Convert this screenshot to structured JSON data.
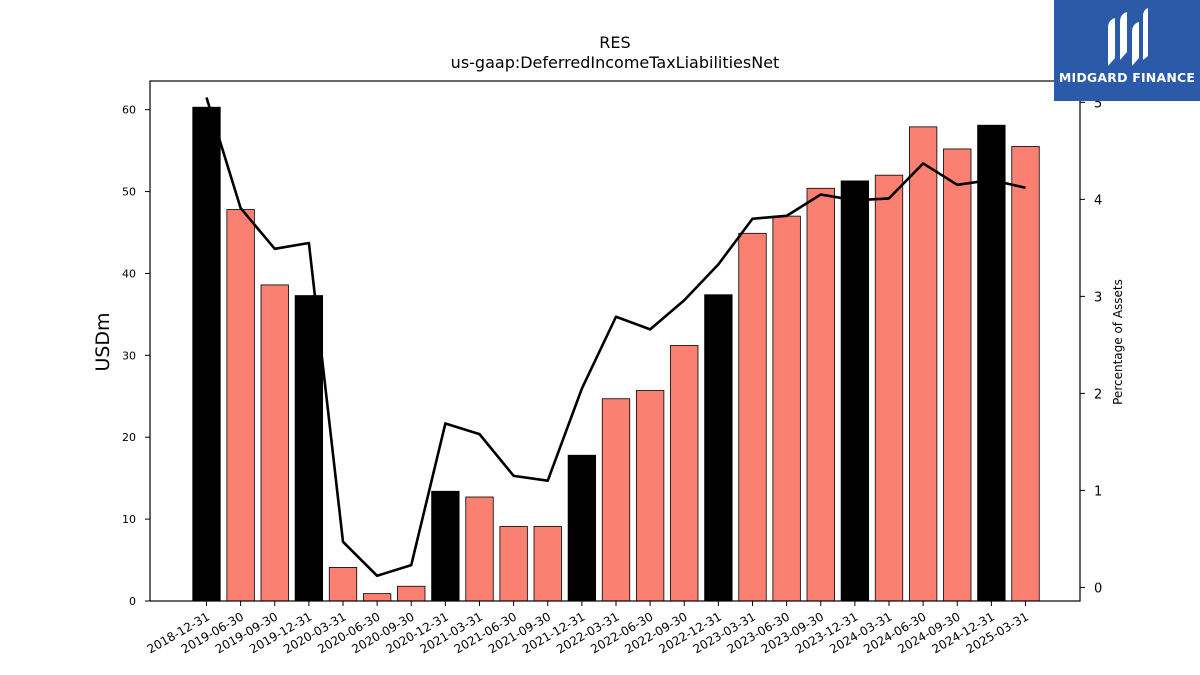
{
  "chart_data": {
    "type": "bar",
    "title": "RES",
    "subtitle": "us-gaap:DeferredIncomeTaxLiabilitiesNet",
    "ylabel": "USDm",
    "y2label": "Percentage of Assets",
    "ylim": [
      0,
      63.5
    ],
    "y2lim": [
      -0.14,
      5.22
    ],
    "yticks": [
      0,
      10,
      20,
      30,
      40,
      50,
      60
    ],
    "y2ticks": [
      0,
      1,
      2,
      3,
      4,
      5
    ],
    "grid": false,
    "categories": [
      "2018-12-31",
      "2019-06-30",
      "2019-09-30",
      "2019-12-31",
      "2020-03-31",
      "2020-06-30",
      "2020-09-30",
      "2020-12-31",
      "2021-03-31",
      "2021-06-30",
      "2021-09-30",
      "2021-12-31",
      "2022-03-31",
      "2022-06-30",
      "2022-09-30",
      "2022-12-31",
      "2023-03-31",
      "2023-06-30",
      "2023-09-30",
      "2023-12-31",
      "2024-03-31",
      "2024-06-30",
      "2024-09-30",
      "2024-12-31",
      "2025-03-31"
    ],
    "series": [
      {
        "type": "bar",
        "values": [
          60.3,
          47.8,
          38.6,
          37.3,
          4.1,
          0.9,
          1.8,
          13.4,
          12.7,
          9.1,
          9.1,
          17.8,
          24.7,
          25.7,
          31.2,
          37.4,
          44.9,
          47.0,
          50.4,
          51.3,
          52.0,
          57.9,
          55.2,
          58.1,
          55.5
        ],
        "highlight": [
          true,
          false,
          false,
          true,
          false,
          false,
          false,
          true,
          false,
          false,
          false,
          true,
          false,
          false,
          false,
          true,
          false,
          false,
          false,
          true,
          false,
          false,
          false,
          true,
          false
        ],
        "color": "#fa8072",
        "highlight_color": "#000000"
      },
      {
        "type": "line",
        "axis": "right",
        "values": [
          5.05,
          3.91,
          3.49,
          3.55,
          0.47,
          0.12,
          0.23,
          1.69,
          1.58,
          1.15,
          1.1,
          2.05,
          2.79,
          2.66,
          2.96,
          3.33,
          3.8,
          3.83,
          4.05,
          3.99,
          4.01,
          4.37,
          4.15,
          4.2,
          4.12
        ],
        "color": "#000000"
      }
    ]
  },
  "logo": {
    "text": "MIDGARD FINANCE",
    "background": "#2b5aa8"
  }
}
